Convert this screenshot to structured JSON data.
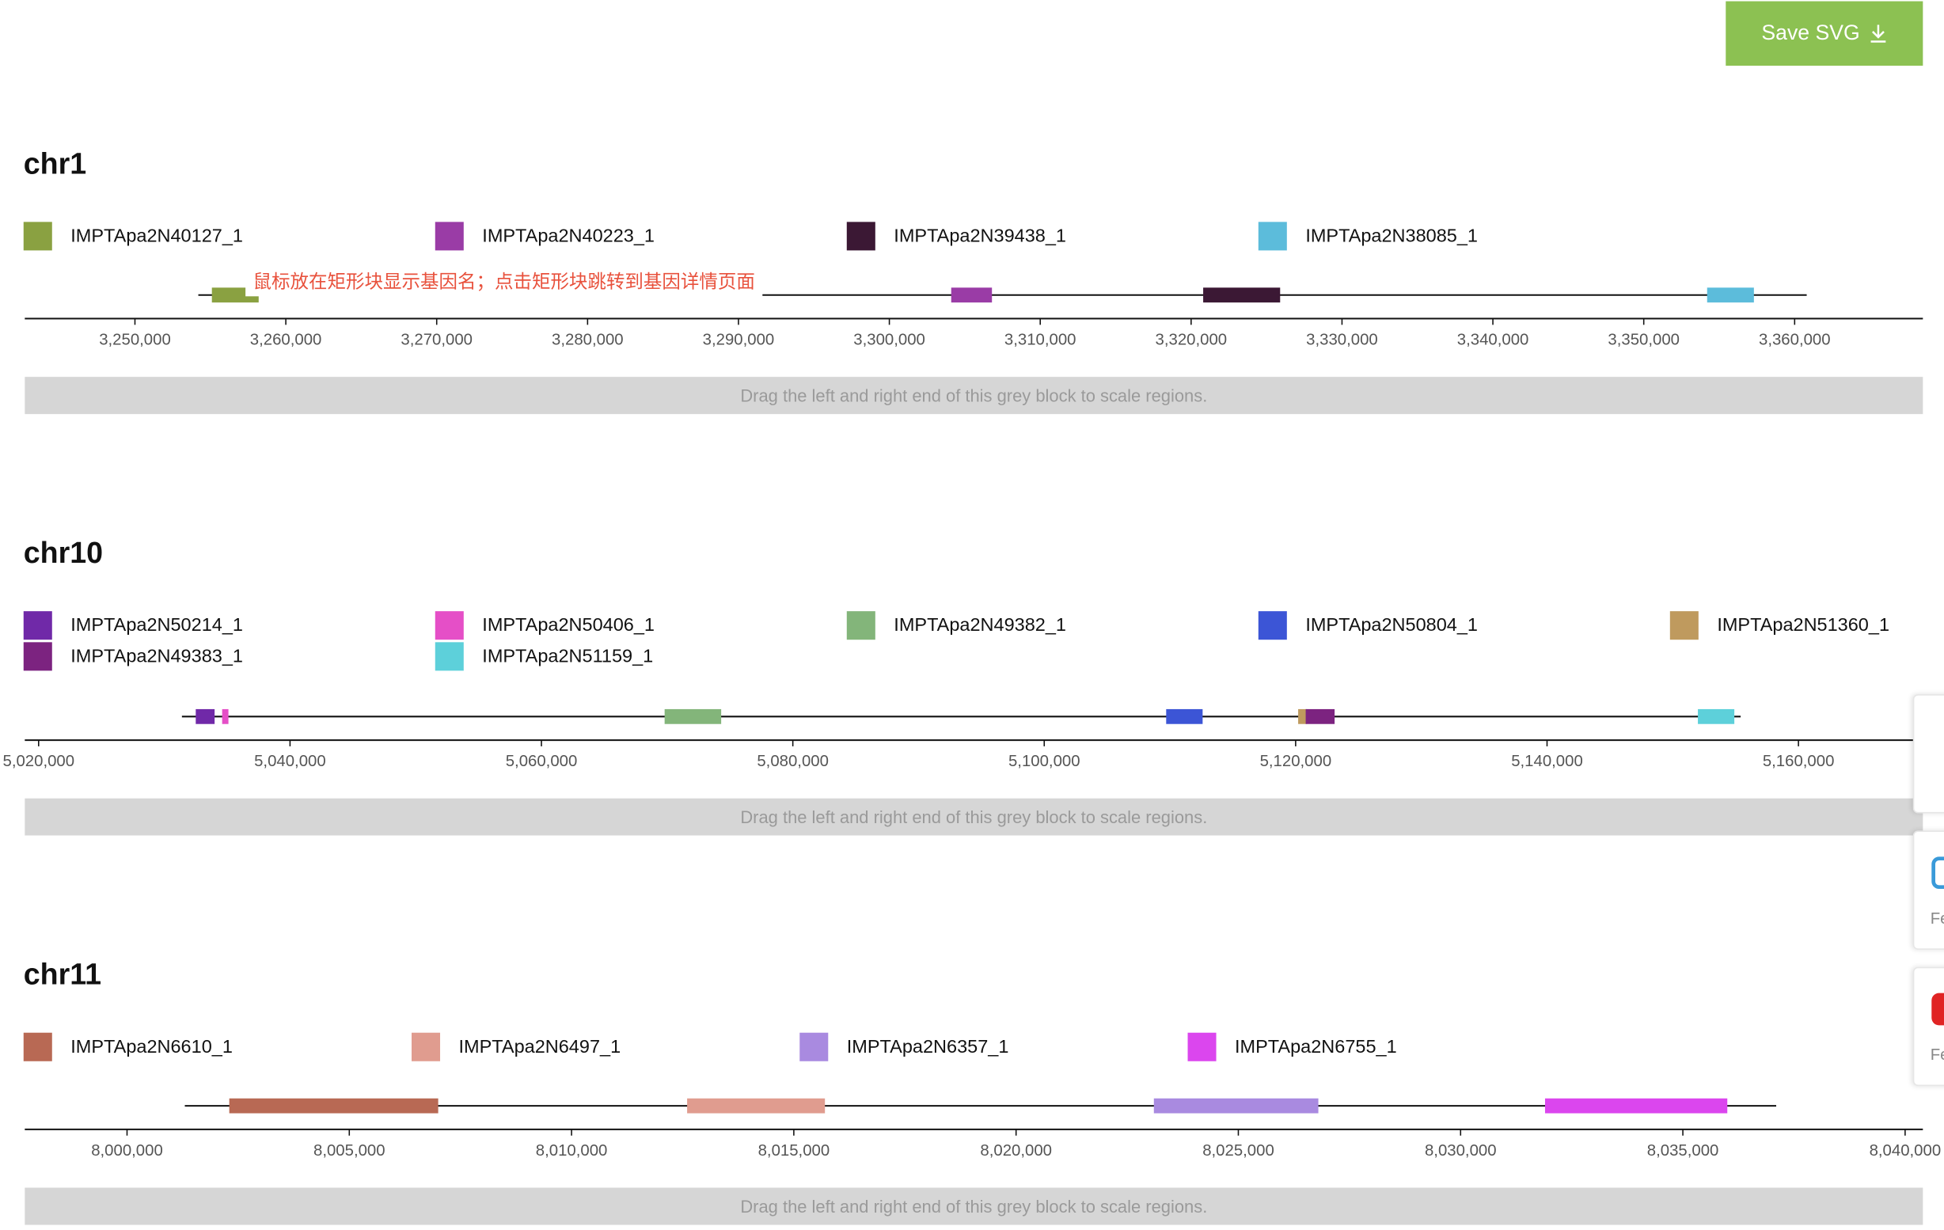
{
  "toolbar": {
    "save_label": "Save SVG",
    "save_icon": "download-icon"
  },
  "hint": "鼠标放在矩形块显示基因名；点击矩形块跳转到基因详情页面",
  "scale_bar_text": "Drag the left and right end of this grey block to scale regions.",
  "side_widgets": [
    {
      "icon": "blank-panel",
      "caption": ""
    },
    {
      "icon": "blue-square-icon",
      "caption": "Fe",
      "color": "#3a9ad9"
    },
    {
      "icon": "red-square-icon",
      "caption": "Fe",
      "color": "#e02424"
    }
  ],
  "tracks": [
    {
      "title": "chr1",
      "legend_rows": [
        [
          {
            "name": "IMPTApa2N40127_1",
            "color": "#8aa141"
          },
          {
            "name": "IMPTApa2N40223_1",
            "color": "#9a3ca6"
          },
          {
            "name": "IMPTApa2N39438_1",
            "color": "#3b1834"
          },
          {
            "name": "IMPTApa2N38085_1",
            "color": "#5cbcdb"
          }
        ]
      ],
      "x_ticks": [
        "3,250,000",
        "3,260,000",
        "3,270,000",
        "3,280,000",
        "3,290,000",
        "3,300,000",
        "3,310,000",
        "3,320,000",
        "3,330,000",
        "3,340,000",
        "3,350,000",
        "3,360,000"
      ],
      "domain": [
        3242700,
        3368500
      ],
      "region": [
        3254200,
        3360800
      ],
      "genes": [
        {
          "name": "IMPTApa2N40127_1",
          "start": 3255100,
          "end": 3258200,
          "color": "#8aa141"
        },
        {
          "name": "IMPTApa2N40223_1",
          "start": 3304100,
          "end": 3306800,
          "color": "#9a3ca6"
        },
        {
          "name": "IMPTApa2N39438_1",
          "start": 3320800,
          "end": 3325900,
          "color": "#3b1834"
        },
        {
          "name": "IMPTApa2N38085_1",
          "start": 3354200,
          "end": 3357300,
          "color": "#5cbcdb"
        }
      ]
    },
    {
      "title": "chr10",
      "legend_rows": [
        [
          {
            "name": "IMPTApa2N50214_1",
            "color": "#7029a8"
          },
          {
            "name": "IMPTApa2N50406_1",
            "color": "#e54fc7"
          },
          {
            "name": "IMPTApa2N49382_1",
            "color": "#83b57a"
          },
          {
            "name": "IMPTApa2N50804_1",
            "color": "#3c55d6"
          },
          {
            "name": "IMPTApa2N51360_1",
            "color": "#bf9a5e"
          }
        ],
        [
          {
            "name": "IMPTApa2N49383_1",
            "color": "#7c2380"
          },
          {
            "name": "IMPTApa2N51159_1",
            "color": "#5dd0da"
          }
        ]
      ],
      "x_ticks": [
        "5,020,000",
        "5,040,000",
        "5,060,000",
        "5,080,000",
        "5,100,000",
        "5,120,000",
        "5,140,000",
        "5,160,000"
      ],
      "domain": [
        5018900,
        5169900
      ],
      "region": [
        5031400,
        5155400
      ],
      "genes": [
        {
          "name": "IMPTApa2N50214_1",
          "start": 5032500,
          "end": 5034000,
          "color": "#7029a8"
        },
        {
          "name": "IMPTApa2N50406_1",
          "start": 5034600,
          "end": 5035100,
          "color": "#e54fc7"
        },
        {
          "name": "IMPTApa2N49382_1",
          "start": 5069800,
          "end": 5074300,
          "color": "#83b57a"
        },
        {
          "name": "IMPTApa2N50804_1",
          "start": 5109700,
          "end": 5112600,
          "color": "#3c55d6"
        },
        {
          "name": "IMPTApa2N51360_1",
          "start": 5120200,
          "end": 5120900,
          "color": "#bf9a5e"
        },
        {
          "name": "IMPTApa2N49383_1",
          "start": 5120800,
          "end": 5123100,
          "color": "#7c2380"
        },
        {
          "name": "IMPTApa2N51159_1",
          "start": 5152000,
          "end": 5154900,
          "color": "#5dd0da"
        }
      ]
    },
    {
      "title": "chr11",
      "legend_rows": [
        [
          {
            "name": "IMPTApa2N6610_1",
            "color": "#b86954"
          },
          {
            "name": "IMPTApa2N6497_1",
            "color": "#e09c8f"
          },
          {
            "name": "IMPTApa2N6357_1",
            "color": "#a98ae0"
          },
          {
            "name": "IMPTApa2N6755_1",
            "color": "#db46ee"
          }
        ]
      ],
      "x_ticks": [
        "8,000,000",
        "8,005,000",
        "8,010,000",
        "8,015,000",
        "8,020,000",
        "8,025,000",
        "8,030,000",
        "8,035,000",
        "8,040,000"
      ],
      "domain": [
        7997700,
        8040400
      ],
      "region": [
        8001300,
        8037100
      ],
      "genes": [
        {
          "name": "IMPTApa2N6610_1",
          "start": 8002300,
          "end": 8007000,
          "color": "#b86954"
        },
        {
          "name": "IMPTApa2N6497_1",
          "start": 8012600,
          "end": 8015700,
          "color": "#e09c8f"
        },
        {
          "name": "IMPTApa2N6357_1",
          "start": 8023100,
          "end": 8026800,
          "color": "#a98ae0"
        },
        {
          "name": "IMPTApa2N6755_1",
          "start": 8031900,
          "end": 8036000,
          "color": "#db46ee"
        }
      ]
    }
  ]
}
